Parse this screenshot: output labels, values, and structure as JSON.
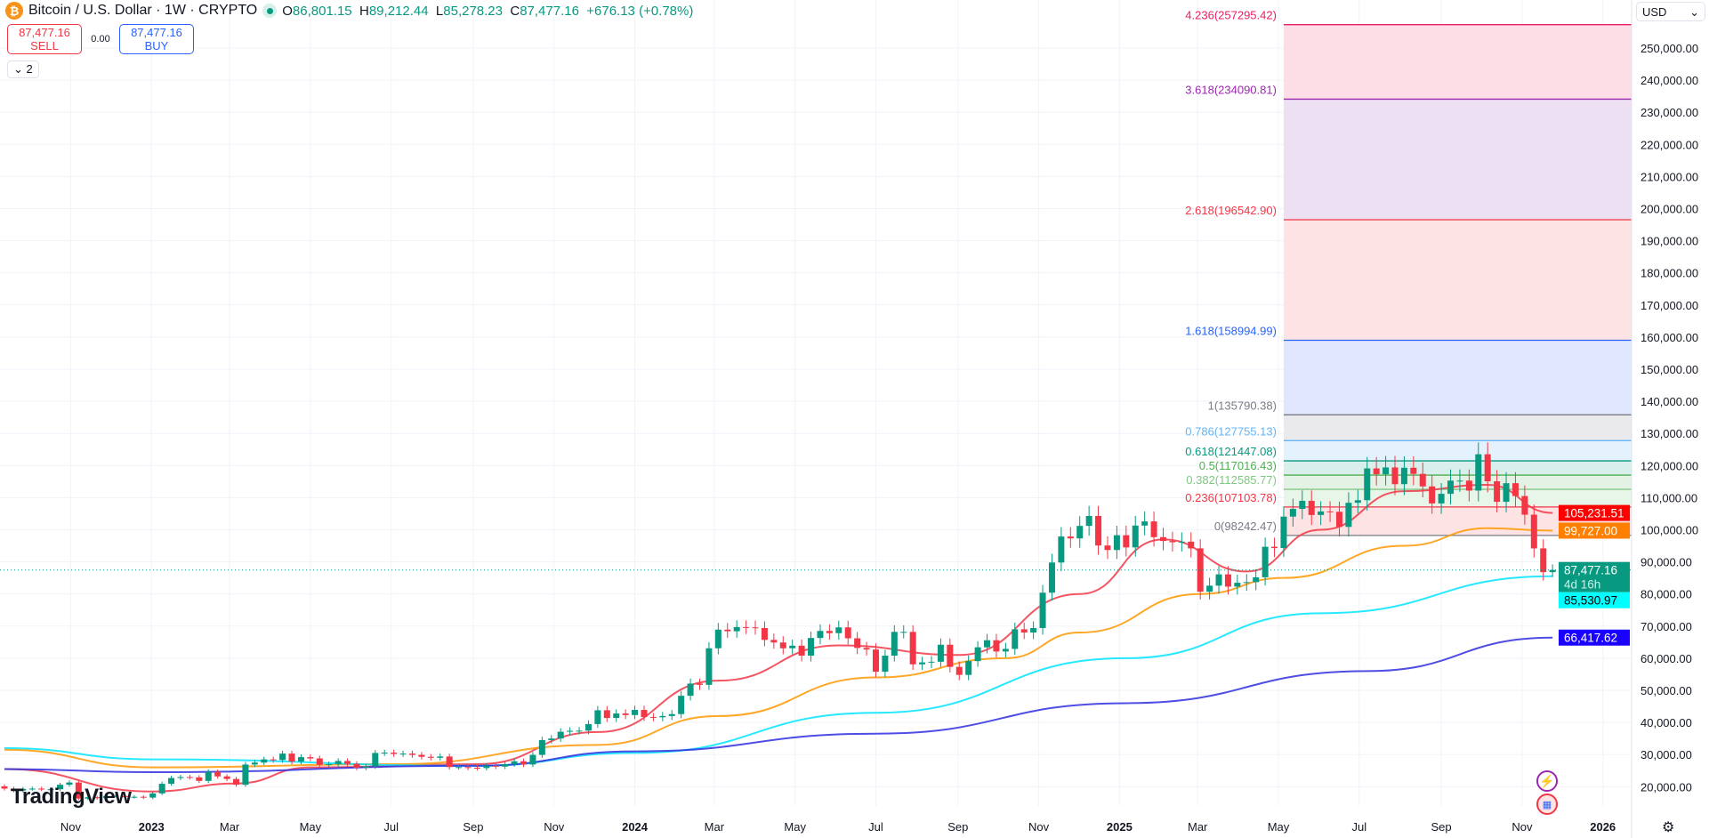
{
  "header": {
    "symbol_icon": "bitcoin-icon",
    "title": "Bitcoin / U.S. Dollar · 1W · CRYPTO",
    "status": "market-open-dot",
    "open_label": "O",
    "open": "86,801.15",
    "high_label": "H",
    "high": "89,212.44",
    "low_label": "L",
    "low": "85,278.23",
    "close_label": "C",
    "close": "87,477.16",
    "change": "+676.13 (+0.78%)"
  },
  "trade": {
    "sell_price": "87,477.16",
    "sell_label": "SELL",
    "spread": "0.00",
    "buy_price": "87,477.16",
    "buy_label": "BUY"
  },
  "indicators_toggle": {
    "icon": "chevron-down-icon",
    "count": "2"
  },
  "currency": {
    "value": "USD",
    "icon": "chevron-down-icon"
  },
  "branding": {
    "logo": "TradingView"
  },
  "colors": {
    "up": "#089981",
    "down": "#f23645",
    "grid": "#f0f3fa"
  },
  "chart_data": {
    "type": "candlestick",
    "interval": "1W",
    "start_week": "2022-09-12",
    "first_open": 20100,
    "closes": [
      19400,
      18800,
      19300,
      19400,
      19200,
      19200,
      20600,
      21300,
      16300,
      16700,
      16450,
      17100,
      17100,
      16800,
      16850,
      16600,
      17900,
      20900,
      22700,
      23000,
      22900,
      21800,
      24600,
      23200,
      22400,
      20600,
      26900,
      27500,
      28500,
      28300,
      30300,
      27800,
      29200,
      28800,
      26800,
      27000,
      28000,
      27100,
      25900,
      26300,
      30500,
      30600,
      30200,
      30300,
      29900,
      29300,
      29000,
      29400,
      26100,
      26100,
      25900,
      25800,
      26500,
      26250,
      27000,
      27900,
      26900,
      29900,
      34500,
      35000,
      37100,
      37400,
      37450,
      39500,
      43800,
      41400,
      42800,
      42300,
      43900,
      41700,
      41600,
      42000,
      42600,
      48300,
      52100,
      51700,
      63100,
      68900,
      68400,
      69700,
      69600,
      69400,
      65700,
      64900,
      63100,
      63900,
      60800,
      66300,
      68500,
      67800,
      69600,
      66200,
      63200,
      62700,
      55800,
      60800,
      68200,
      68200,
      58100,
      58700,
      58900,
      64200,
      57300,
      54800,
      59100,
      63400,
      65600,
      62100,
      62900,
      69000,
      68000,
      69400,
      80400,
      89800,
      97900,
      97300,
      101200,
      104300,
      95100,
      93700,
      98300,
      94500,
      101300,
      102600,
      97700,
      96500,
      96100,
      96300,
      94200,
      80700,
      82600,
      86100,
      82300,
      83500,
      83700,
      85200,
      94700,
      94300,
      104100,
      106500,
      109000,
      104600,
      105700,
      105600,
      100900,
      108400,
      109200,
      119100,
      117300,
      119400,
      114200,
      119300,
      117400,
      113500,
      108200,
      111200,
      115300,
      115300,
      112200,
      123500,
      115100,
      108700,
      114500,
      110500,
      104700,
      94200,
      86801.15,
      87477.16
    ],
    "last_candle": {
      "open": 86801.15,
      "high": 89212.44,
      "low": 85278.23,
      "close": 87477.16
    },
    "moving_averages": [
      {
        "color": "#f23645",
        "last": "105,231.51",
        "points": [
          [
            "2022-09-12",
            25500
          ],
          [
            "2023-01-02",
            18500
          ],
          [
            "2023-03-06",
            21000
          ],
          [
            "2023-05-01",
            26000
          ],
          [
            "2023-09-04",
            27000
          ],
          [
            "2023-12-04",
            37000
          ],
          [
            "2024-03-04",
            53000
          ],
          [
            "2024-06-03",
            64000
          ],
          [
            "2024-09-02",
            61000
          ],
          [
            "2024-12-02",
            80000
          ],
          [
            "2025-02-03",
            97000
          ],
          [
            "2025-04-07",
            87000
          ],
          [
            "2025-06-02",
            100000
          ],
          [
            "2025-08-04",
            112000
          ],
          [
            "2025-10-06",
            114000
          ],
          [
            "2025-11-24",
            105231.51
          ]
        ]
      },
      {
        "color": "#ff9800",
        "last": "99,727.00",
        "points": [
          [
            "2022-09-12",
            31500
          ],
          [
            "2023-01-02",
            26000
          ],
          [
            "2023-07-03",
            27000
          ],
          [
            "2023-12-04",
            33000
          ],
          [
            "2024-03-04",
            42000
          ],
          [
            "2024-07-01",
            54000
          ],
          [
            "2024-10-07",
            60000
          ],
          [
            "2024-12-02",
            68000
          ],
          [
            "2025-03-03",
            80000
          ],
          [
            "2025-05-05",
            85000
          ],
          [
            "2025-08-04",
            95000
          ],
          [
            "2025-10-06",
            100500
          ],
          [
            "2025-11-24",
            99727
          ]
        ]
      },
      {
        "color": "#00e5ff",
        "last": "85,530.97",
        "points": [
          [
            "2022-09-12",
            32000
          ],
          [
            "2023-01-02",
            28500
          ],
          [
            "2023-09-04",
            26500
          ],
          [
            "2024-01-01",
            30500
          ],
          [
            "2024-07-01",
            43000
          ],
          [
            "2025-01-06",
            60000
          ],
          [
            "2025-06-02",
            74000
          ],
          [
            "2025-11-24",
            85530.97
          ]
        ]
      },
      {
        "color": "#2f2fe0",
        "last": "66,417.62",
        "points": [
          [
            "2022-09-12",
            25500
          ],
          [
            "2023-01-02",
            24500
          ],
          [
            "2023-09-04",
            26500
          ],
          [
            "2024-01-01",
            31000
          ],
          [
            "2024-07-01",
            36500
          ],
          [
            "2025-01-06",
            46000
          ],
          [
            "2025-07-07",
            56000
          ],
          [
            "2025-11-24",
            66417.62
          ]
        ]
      }
    ],
    "fib": {
      "start": "2025-05-05",
      "levels": [
        {
          "ratio": "0",
          "value": 98242.47,
          "label": "0(98242.47)",
          "color": "#787b86",
          "fill": "#fde3e3"
        },
        {
          "ratio": "0.236",
          "value": 107103.78,
          "label": "0.236(107103.78)",
          "color": "#f23645",
          "fill": "#e8f5e9"
        },
        {
          "ratio": "0.382",
          "value": 112585.77,
          "label": "0.382(112585.77)",
          "color": "#81c784",
          "fill": "#e3f2e4"
        },
        {
          "ratio": "0.5",
          "value": 117016.43,
          "label": "0.5(117016.43)",
          "color": "#4caf50",
          "fill": "#d8efeb"
        },
        {
          "ratio": "0.618",
          "value": 121447.08,
          "label": "0.618(121447.08)",
          "color": "#089981",
          "fill": "#e3f2fd"
        },
        {
          "ratio": "0.786",
          "value": 127755.13,
          "label": "0.786(127755.13)",
          "color": "#64b5f6",
          "fill": "#eaeaec"
        },
        {
          "ratio": "1",
          "value": 135790.38,
          "label": "1(135790.38)",
          "color": "#787b86",
          "fill": "#dfe6fd"
        },
        {
          "ratio": "1.618",
          "value": 158994.99,
          "label": "1.618(158994.99)",
          "color": "#2962ff",
          "fill": "#fde3e3"
        },
        {
          "ratio": "2.618",
          "value": 196542.9,
          "label": "2.618(196542.90)",
          "color": "#f23645",
          "fill": "#ede0f2"
        },
        {
          "ratio": "3.618",
          "value": 234090.81,
          "label": "3.618(234090.81)",
          "color": "#9c27b0",
          "fill": "#fddde6"
        },
        {
          "ratio": "4.236",
          "value": 257295.42,
          "label": "4.236(257295.42)",
          "color": "#e91e63",
          "fill": null
        }
      ]
    },
    "last_price": {
      "value": "87,477.16",
      "countdown": "4d 16h",
      "color": "#089981"
    },
    "y_ticks": [
      20000,
      30000,
      40000,
      50000,
      60000,
      70000,
      80000,
      90000,
      100000,
      110000,
      120000,
      130000,
      140000,
      150000,
      160000,
      170000,
      180000,
      190000,
      200000,
      210000,
      220000,
      230000,
      240000,
      250000
    ],
    "y_tick_labels": [
      "20,000.00",
      "30,000.00",
      "40,000.00",
      "50,000.00",
      "60,000.00",
      "70,000.00",
      "80,000.00",
      "90,000.00",
      "100,000.00",
      "110,000.00",
      "120,000.00",
      "130,000.00",
      "140,000.00",
      "150,000.00",
      "160,000.00",
      "170,000.00",
      "180,000.00",
      "190,000.00",
      "200,000.00",
      "210,000.00",
      "220,000.00",
      "230,000.00",
      "240,000.00",
      "250,000.00"
    ],
    "x_ticks": [
      [
        "2022-11-01",
        "Nov"
      ],
      [
        "2023-01-01",
        "2023"
      ],
      [
        "2023-03-01",
        "Mar"
      ],
      [
        "2023-05-01",
        "May"
      ],
      [
        "2023-07-01",
        "Jul"
      ],
      [
        "2023-09-01",
        "Sep"
      ],
      [
        "2023-11-01",
        "Nov"
      ],
      [
        "2024-01-01",
        "2024"
      ],
      [
        "2024-03-01",
        "Mar"
      ],
      [
        "2024-05-01",
        "May"
      ],
      [
        "2024-07-01",
        "Jul"
      ],
      [
        "2024-09-01",
        "Sep"
      ],
      [
        "2024-11-01",
        "Nov"
      ],
      [
        "2025-01-01",
        "2025"
      ],
      [
        "2025-03-01",
        "Mar"
      ],
      [
        "2025-05-01",
        "May"
      ],
      [
        "2025-07-01",
        "Jul"
      ],
      [
        "2025-09-01",
        "Sep"
      ],
      [
        "2025-11-01",
        "Nov"
      ],
      [
        "2026-01-01",
        "2026"
      ]
    ]
  }
}
